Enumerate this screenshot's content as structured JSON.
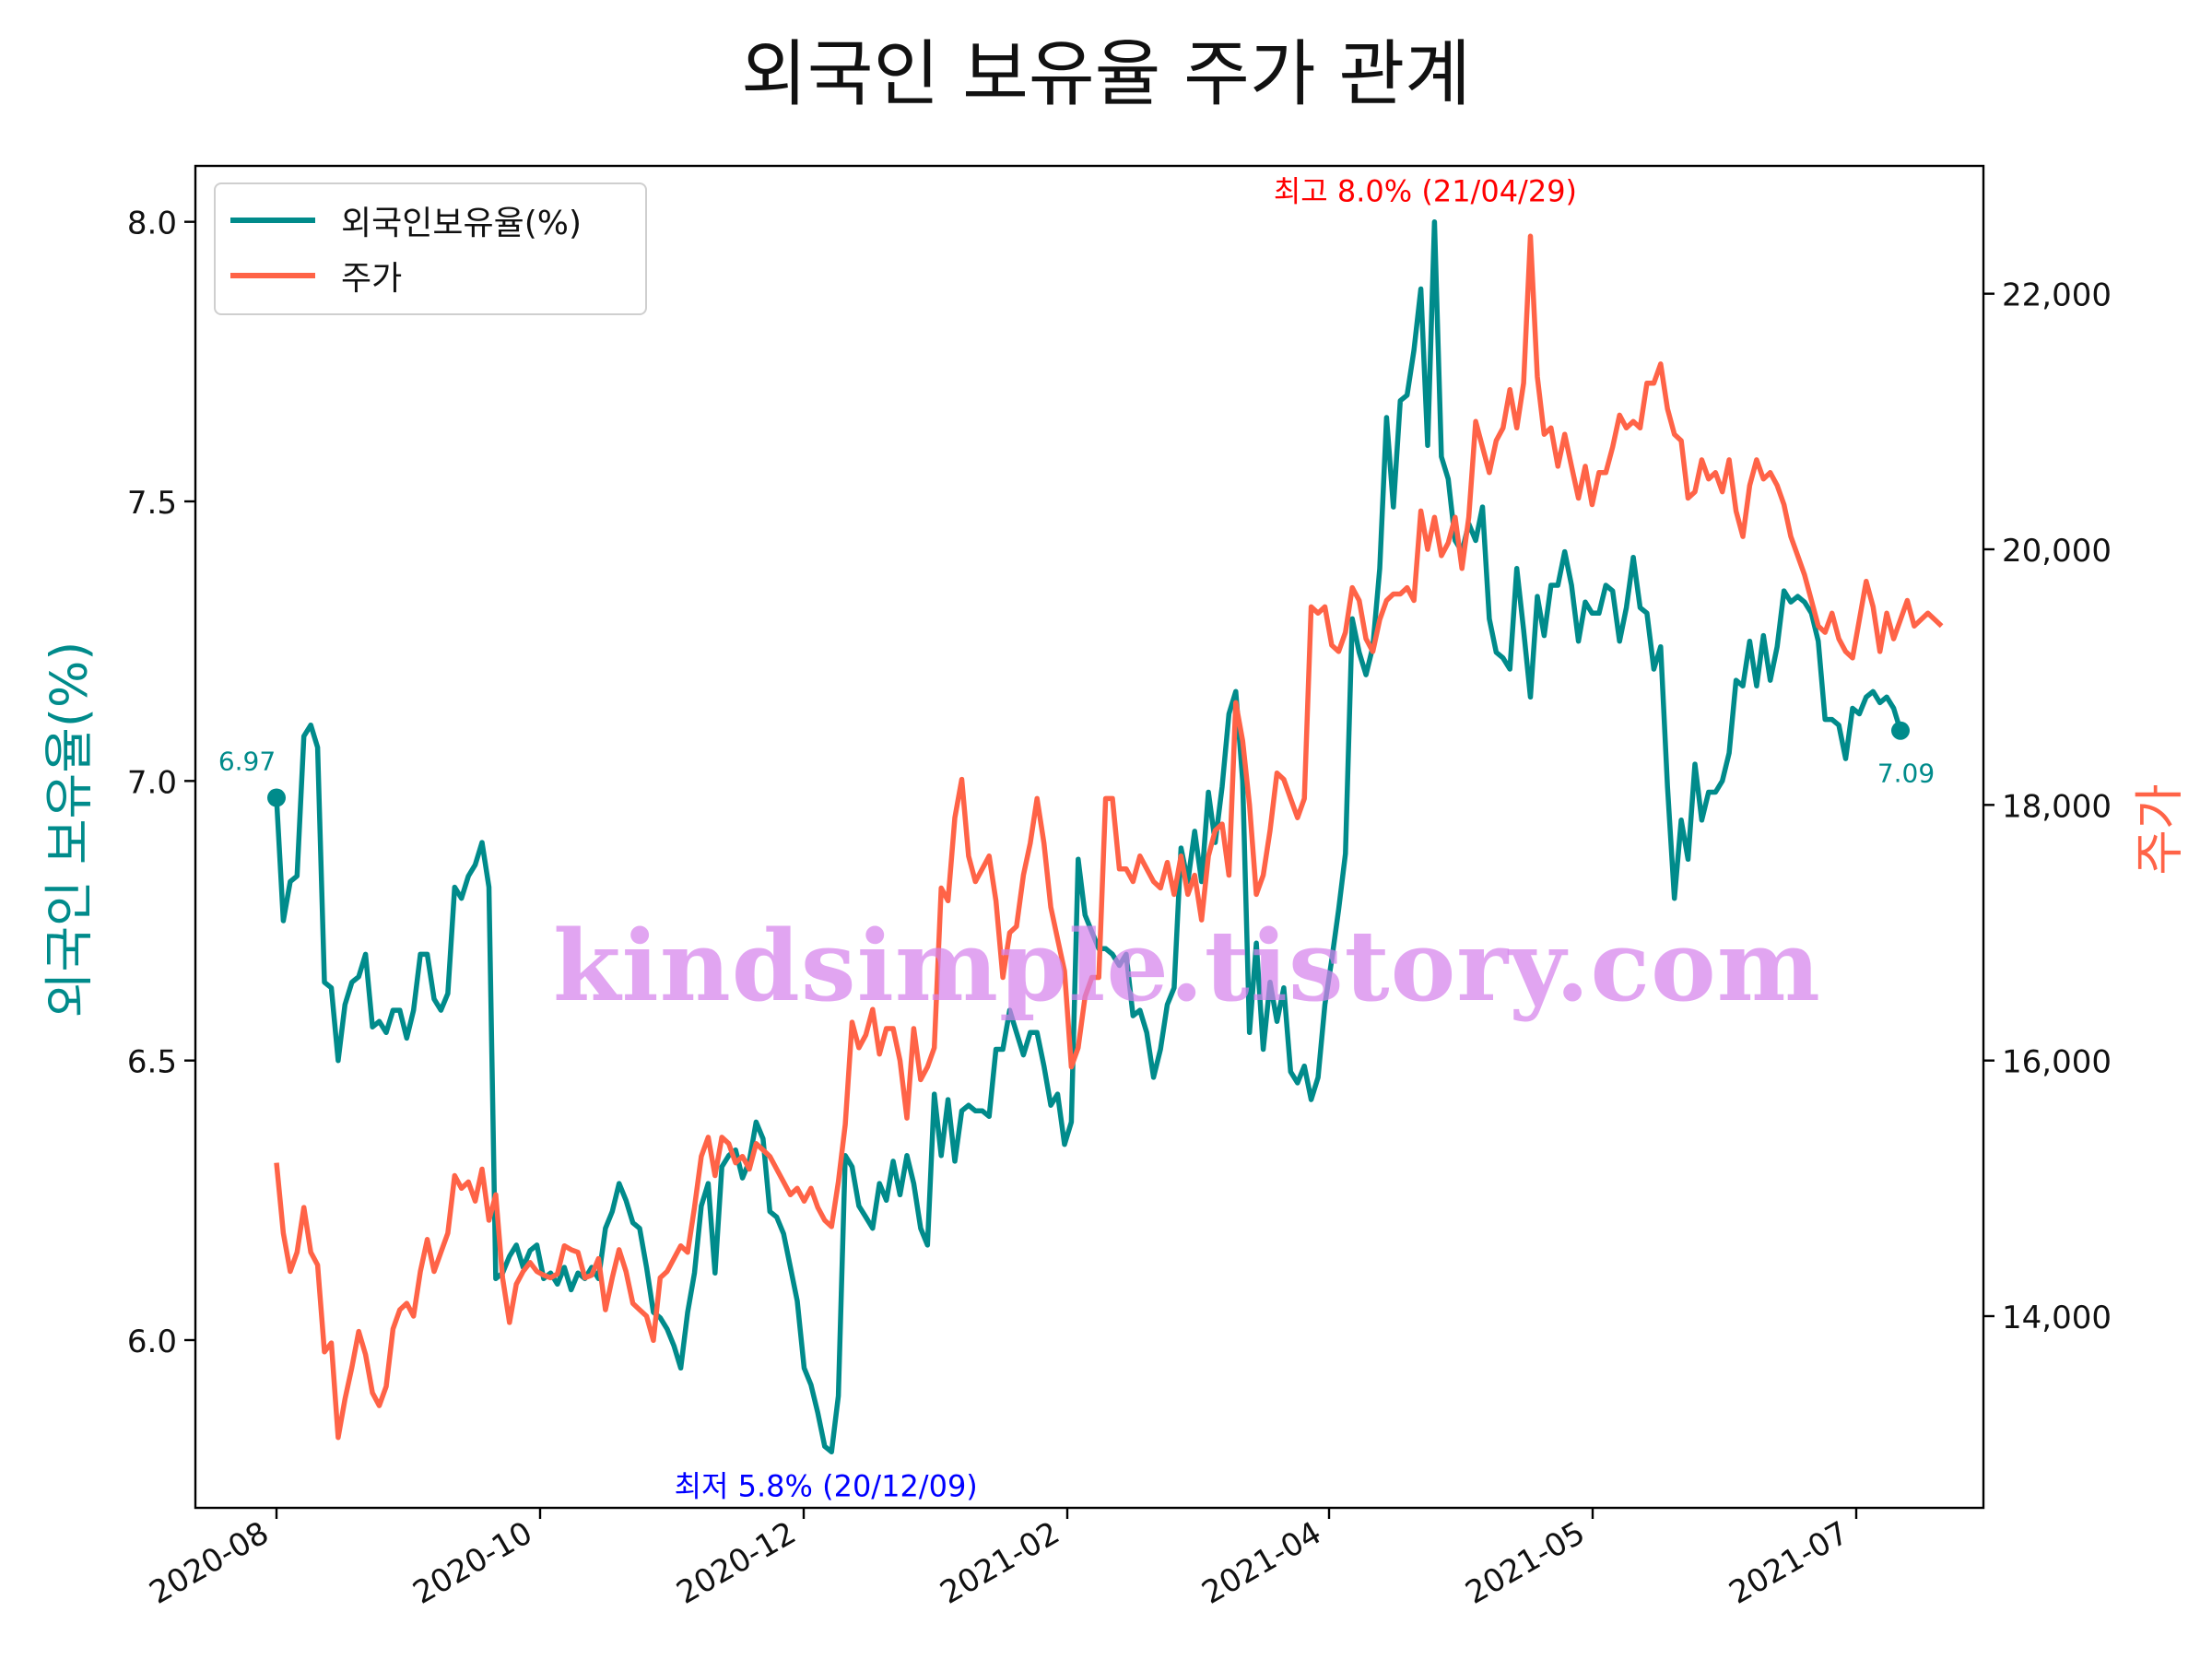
{
  "chart_data": {
    "type": "line",
    "title": "외국인 보유율 주가 관계",
    "ylabel_left": "외국인 보유율(%)",
    "ylabel_right": "주가",
    "x_ticks": [
      "2020-08",
      "2020-10",
      "2020-12",
      "2021-02",
      "2021-04",
      "2021-05",
      "2021-07"
    ],
    "left_y_ticks": [
      "6.0",
      "6.5",
      "7.0",
      "7.5",
      "8.0"
    ],
    "right_y_ticks": [
      "14,000",
      "16,000",
      "18,000",
      "20,000",
      "22,000"
    ],
    "ylim_left": [
      5.7,
      8.1
    ],
    "ylim_right": [
      12500,
      23000
    ],
    "legend_position": "top-left",
    "grid": false,
    "series": [
      {
        "name": "외국인보유율(%)",
        "axis": "left",
        "color": "#008B8B",
        "values": [
          6.97,
          6.75,
          6.82,
          6.83,
          7.08,
          7.1,
          7.06,
          6.64,
          6.63,
          6.5,
          6.6,
          6.64,
          6.65,
          6.69,
          6.56,
          6.57,
          6.55,
          6.59,
          6.59,
          6.54,
          6.59,
          6.69,
          6.69,
          6.61,
          6.59,
          6.62,
          6.81,
          6.79,
          6.83,
          6.85,
          6.89,
          6.81,
          6.11,
          6.12,
          6.15,
          6.17,
          6.13,
          6.16,
          6.17,
          6.11,
          6.12,
          6.1,
          6.13,
          6.09,
          6.12,
          6.11,
          6.13,
          6.11,
          6.2,
          6.23,
          6.28,
          6.25,
          6.21,
          6.2,
          6.13,
          6.05,
          6.04,
          6.02,
          5.99,
          5.95,
          6.05,
          6.12,
          6.24,
          6.28,
          6.12,
          6.31,
          6.33,
          6.34,
          6.29,
          6.32,
          6.39,
          6.36,
          6.23,
          6.22,
          6.19,
          6.13,
          6.07,
          5.95,
          5.92,
          5.87,
          5.81,
          5.8,
          5.9,
          6.33,
          6.31,
          6.24,
          6.22,
          6.2,
          6.28,
          6.25,
          6.32,
          6.26,
          6.33,
          6.28,
          6.2,
          6.17,
          6.44,
          6.33,
          6.43,
          6.32,
          6.41,
          6.42,
          6.41,
          6.41,
          6.4,
          6.52,
          6.52,
          6.59,
          6.55,
          6.51,
          6.55,
          6.55,
          6.49,
          6.42,
          6.44,
          6.35,
          6.39,
          6.86,
          6.76,
          6.73,
          6.7,
          6.7,
          6.69,
          6.67,
          6.69,
          6.58,
          6.59,
          6.55,
          6.47,
          6.52,
          6.6,
          6.63,
          6.88,
          6.82,
          6.91,
          6.82,
          6.98,
          6.89,
          6.99,
          7.12,
          7.16,
          7.0,
          6.55,
          6.71,
          6.52,
          6.64,
          6.57,
          6.63,
          6.48,
          6.46,
          6.49,
          6.43,
          6.47,
          6.6,
          6.68,
          6.77,
          6.87,
          7.29,
          7.23,
          7.19,
          7.24,
          7.38,
          7.65,
          7.49,
          7.68,
          7.69,
          7.77,
          7.88,
          7.6,
          8.0,
          7.58,
          7.54,
          7.43,
          7.41,
          7.46,
          7.43,
          7.49,
          7.29,
          7.23,
          7.22,
          7.2,
          7.38,
          7.27,
          7.15,
          7.33,
          7.26,
          7.35,
          7.35,
          7.41,
          7.35,
          7.25,
          7.32,
          7.3,
          7.3,
          7.35,
          7.34,
          7.25,
          7.31,
          7.4,
          7.31,
          7.3,
          7.2,
          7.24,
          6.99,
          6.79,
          6.93,
          6.86,
          7.03,
          6.93,
          6.98,
          6.98,
          7.0,
          7.05,
          7.18,
          7.17,
          7.25,
          7.17,
          7.26,
          7.18,
          7.24,
          7.34,
          7.32,
          7.33,
          7.32,
          7.3,
          7.25,
          7.11,
          7.11,
          7.1,
          7.04,
          7.13,
          7.12,
          7.15,
          7.16,
          7.14,
          7.15,
          7.13,
          7.09
        ]
      },
      {
        "name": "주가",
        "axis": "right",
        "color": "#FF6347",
        "values": [
          15200,
          14650,
          14350,
          14500,
          14850,
          14500,
          14400,
          13720,
          13790,
          13050,
          13350,
          13600,
          13880,
          13700,
          13400,
          13300,
          13450,
          13900,
          14050,
          14100,
          14000,
          14350,
          14600,
          14350,
          14500,
          14650,
          15100,
          15000,
          15050,
          14900,
          15150,
          14750,
          14950,
          14300,
          13950,
          14250,
          14350,
          14420,
          14350,
          14320,
          14300,
          14330,
          14550,
          14520,
          14500,
          14300,
          14320,
          14450,
          14050,
          14300,
          14520,
          14350,
          14100,
          14050,
          14000,
          13810,
          14300,
          14350,
          14450,
          14550,
          14500,
          14850,
          15250,
          15400,
          15100,
          15400,
          15350,
          15200,
          15250,
          15150,
          15350,
          15300,
          15250,
          15150,
          15050,
          14950,
          15000,
          14900,
          15000,
          14850,
          14750,
          14700,
          15050,
          15500,
          16300,
          16100,
          16200,
          16400,
          16050,
          16250,
          16250,
          16000,
          15550,
          16250,
          15850,
          15950,
          16100,
          17350,
          17250,
          17900,
          18200,
          17600,
          17400,
          17500,
          17600,
          17250,
          16650,
          17000,
          17050,
          17450,
          17700,
          18050,
          17700,
          17200,
          16950,
          16700,
          15950,
          16100,
          16500,
          16650,
          16650,
          18050,
          18050,
          17500,
          17500,
          17400,
          17600,
          17500,
          17400,
          17350,
          17550,
          17300,
          17600,
          17300,
          17450,
          17100,
          17600,
          17800,
          17850,
          17450,
          18800,
          18500,
          18000,
          17300,
          17450,
          17800,
          18250,
          18200,
          18050,
          17900,
          18050,
          19550,
          19500,
          19550,
          19250,
          19200,
          19350,
          19700,
          19600,
          19300,
          19200,
          19450,
          19600,
          19650,
          19650,
          19700,
          19600,
          20300,
          20000,
          20250,
          19950,
          20050,
          20250,
          19850,
          20250,
          21000,
          20800,
          20600,
          20850,
          20950,
          21250,
          20950,
          21300,
          22450,
          21350,
          20900,
          20950,
          20650,
          20900,
          20650,
          20400,
          20650,
          20350,
          20600,
          20600,
          20800,
          21050,
          20950,
          21000,
          20950,
          21300,
          21300,
          21450,
          21100,
          20900,
          20850,
          20400,
          20450,
          20700,
          20550,
          20600,
          20450,
          20700,
          20300,
          20100,
          20500,
          20700,
          20550,
          20600,
          20500,
          20350,
          20100,
          19950,
          19800,
          19600,
          19400,
          19350,
          19500,
          19300,
          19200,
          19150,
          19450,
          19750,
          19550,
          19200,
          19500,
          19300,
          19450,
          19600,
          19400,
          19450,
          19500,
          19450,
          19400
        ]
      }
    ],
    "annotations": {
      "max": {
        "text": "최고 8.0% (21/04/29)",
        "color": "#FF0000"
      },
      "min": {
        "text": "최저 5.8% (20/12/09)",
        "color": "#0000FF"
      },
      "start_value": "6.97",
      "end_value": "7.09"
    },
    "watermark": "kindsimple.tistory.com"
  }
}
